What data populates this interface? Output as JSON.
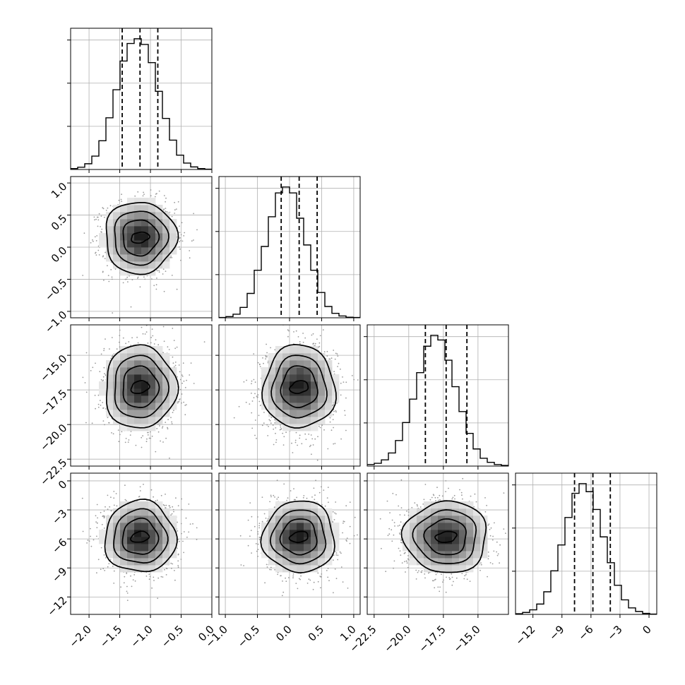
{
  "chart_data": {
    "type": "corner",
    "title": "",
    "parameters": [
      {
        "index": 0,
        "label": "",
        "range": [
          -2.3,
          0.0
        ],
        "median": -1.17,
        "quantile_16": -1.46,
        "quantile_84": -0.88,
        "sigma": 0.29,
        "ticks": [
          {
            "v": -2.0,
            "t": "−2.0"
          },
          {
            "v": -1.5,
            "t": "−1.5"
          },
          {
            "v": -1.0,
            "t": "−1.0"
          },
          {
            "v": -0.5,
            "t": "−0.5"
          },
          {
            "v": 0.0,
            "t": "0.0"
          }
        ]
      },
      {
        "index": 1,
        "label": "",
        "range": [
          -1.1,
          1.1
        ],
        "median": 0.15,
        "quantile_16": -0.13,
        "quantile_84": 0.43,
        "sigma": 0.28,
        "ticks": [
          {
            "v": -1.0,
            "t": "−1.0"
          },
          {
            "v": -0.5,
            "t": "−0.5"
          },
          {
            "v": 0.0,
            "t": "0.0"
          },
          {
            "v": 0.5,
            "t": "0.5"
          },
          {
            "v": 1.0,
            "t": "1.0"
          }
        ]
      },
      {
        "index": 2,
        "label": "",
        "range": [
          -23.0,
          -12.8
        ],
        "median": -17.3,
        "quantile_16": -18.8,
        "quantile_84": -15.8,
        "sigma": 1.5,
        "ticks": [
          {
            "v": -22.5,
            "t": "−22.5"
          },
          {
            "v": -20.0,
            "t": "−20.0"
          },
          {
            "v": -17.5,
            "t": "−17.5"
          },
          {
            "v": -15.0,
            "t": "−15.0"
          }
        ]
      },
      {
        "index": 3,
        "label": "",
        "range": [
          -13.8,
          0.8
        ],
        "median": -5.8,
        "quantile_16": -7.7,
        "quantile_84": -4.0,
        "sigma": 1.85,
        "ticks": [
          {
            "v": -12,
            "t": "−12"
          },
          {
            "v": -9,
            "t": "−9"
          },
          {
            "v": -6,
            "t": "−6"
          },
          {
            "v": -3,
            "t": "−3"
          },
          {
            "v": 0,
            "t": "0"
          }
        ]
      }
    ],
    "histograms": [
      {
        "param": 0,
        "bins": 20,
        "counts": [
          3,
          7,
          18,
          42,
          90,
          162,
          250,
          340,
          395,
          410,
          392,
          335,
          245,
          160,
          92,
          45,
          20,
          8,
          3,
          1
        ]
      },
      {
        "param": 1,
        "bins": 20,
        "counts": [
          1,
          4,
          12,
          35,
          82,
          160,
          240,
          340,
          420,
          440,
          420,
          335,
          245,
          160,
          85,
          38,
          15,
          6,
          2,
          1
        ]
      },
      {
        "param": 2,
        "bins": 20,
        "counts": [
          5,
          9,
          20,
          42,
          82,
          140,
          215,
          300,
          385,
          420,
          405,
          340,
          255,
          175,
          105,
          55,
          25,
          12,
          5,
          2
        ]
      },
      {
        "param": 3,
        "bins": 20,
        "counts": [
          2,
          6,
          14,
          32,
          70,
          135,
          215,
          300,
          375,
          405,
          380,
          325,
          240,
          160,
          90,
          45,
          20,
          9,
          3,
          1
        ]
      }
    ],
    "histogram_y_ticks": 3,
    "contour_levels_sigma": [
      0.5,
      1.0,
      1.5,
      2.0
    ],
    "grid": true,
    "legend": "none"
  }
}
